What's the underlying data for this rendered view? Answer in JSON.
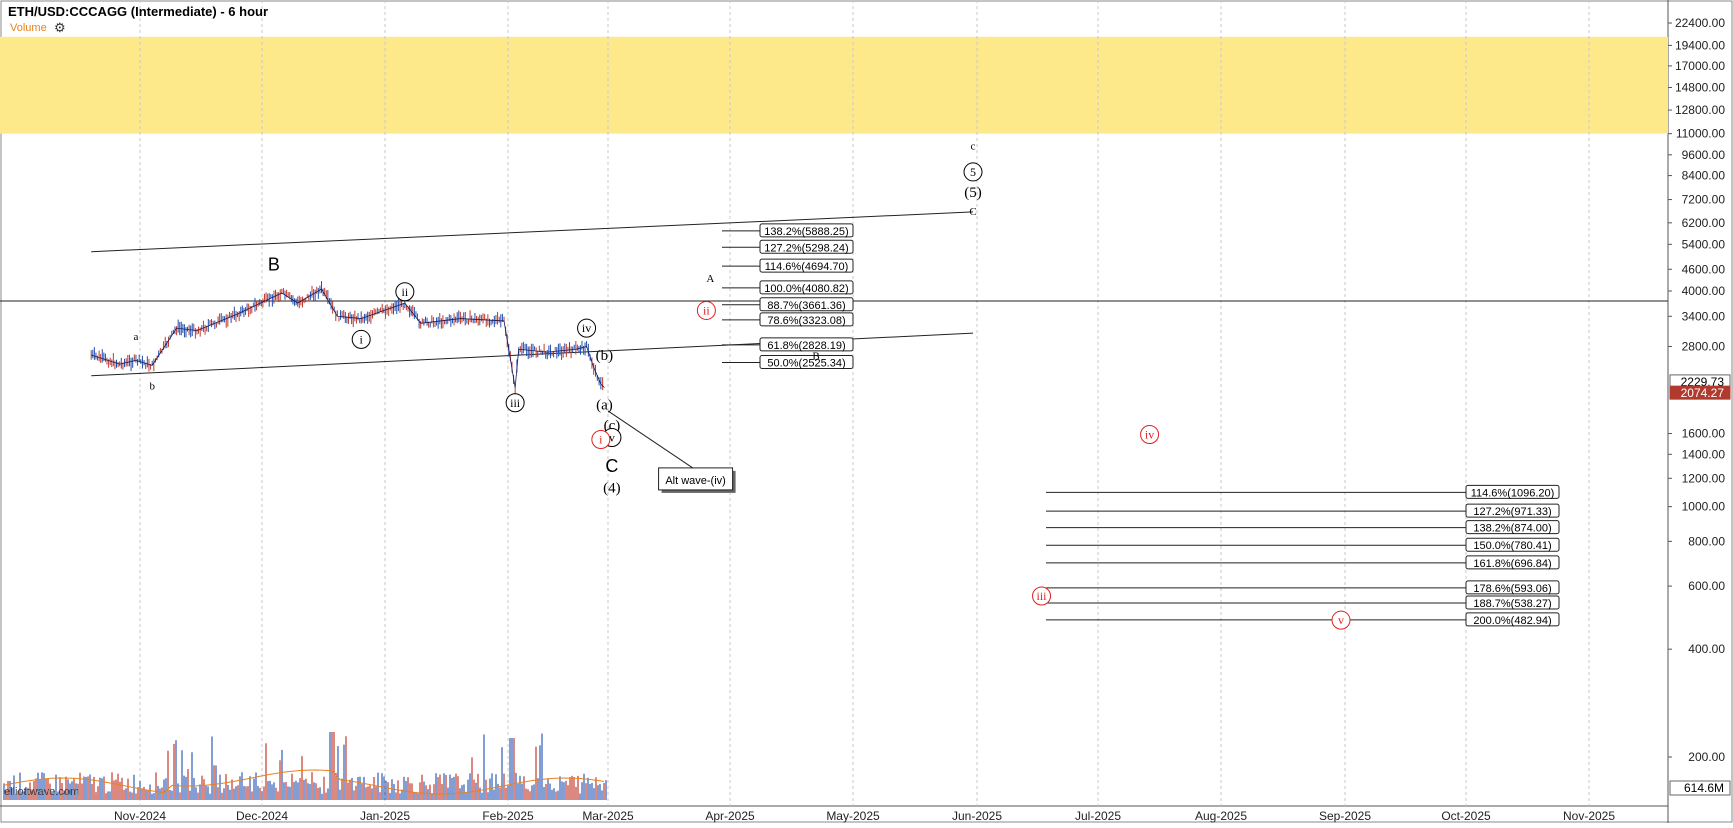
{
  "header": {
    "title": "ETH/USD:CCCAGG (Intermediate) - 6 hour",
    "volume_label": "Volume",
    "settings_icon": "gear-icon",
    "watermark": "elliottwave.com"
  },
  "chart_data": {
    "type": "line",
    "scale": "log",
    "grid": "vertical dashed",
    "colors": {
      "highlight_band": "#fde98a",
      "price_up": "#1f4fb0",
      "price_down": "#c0392b",
      "red_label": "#e02020",
      "current_price_tag": "#b03a2e"
    },
    "x_ticks": [
      "Nov-2024",
      "Dec-2024",
      "Jan-2025",
      "Feb-2025",
      "Mar-2025",
      "Apr-2025",
      "May-2025",
      "Jun-2025",
      "Jul-2025",
      "Aug-2025",
      "Sep-2025",
      "Oct-2025",
      "Nov-2025"
    ],
    "y_ticks": [
      "22400.00",
      "19400.00",
      "17000.00",
      "14800.00",
      "12800.00",
      "11000.00",
      "9600.00",
      "8400.00",
      "7200.00",
      "6200.00",
      "5400.00",
      "4600.00",
      "4000.00",
      "3400.00",
      "2800.00",
      "1600.00",
      "1400.00",
      "1200.00",
      "1000.00",
      "800.00",
      "600.00",
      "400.00",
      "200.00"
    ],
    "ylim": [
      150,
      26000
    ],
    "price_tags": [
      "2229.73",
      "2074.27"
    ],
    "volume_tag": "614.6M",
    "highlight_band": [
      11000,
      20500
    ],
    "price_series": [
      {
        "date": "2024-10-20",
        "close": 2650
      },
      {
        "date": "2024-10-27",
        "close": 2500
      },
      {
        "date": "2024-10-31",
        "close": 2560
      },
      {
        "date": "2024-11-04",
        "close": 2480
      },
      {
        "date": "2024-11-10",
        "close": 3150
      },
      {
        "date": "2024-11-15",
        "close": 3100
      },
      {
        "date": "2024-11-25",
        "close": 3450
      },
      {
        "date": "2024-12-06",
        "close": 3950
      },
      {
        "date": "2024-12-10",
        "close": 3700
      },
      {
        "date": "2024-12-16",
        "close": 4050
      },
      {
        "date": "2024-12-20",
        "close": 3400
      },
      {
        "date": "2024-12-26",
        "close": 3350
      },
      {
        "date": "2025-01-06",
        "close": 3700
      },
      {
        "date": "2025-01-10",
        "close": 3250
      },
      {
        "date": "2025-01-20",
        "close": 3350
      },
      {
        "date": "2025-01-31",
        "close": 3300
      },
      {
        "date": "2025-02-03",
        "close": 2150
      },
      {
        "date": "2025-02-04",
        "close": 2750
      },
      {
        "date": "2025-02-12",
        "close": 2700
      },
      {
        "date": "2025-02-20",
        "close": 2750
      },
      {
        "date": "2025-02-23",
        "close": 2800
      },
      {
        "date": "2025-02-25",
        "close": 2450
      },
      {
        "date": "2025-02-27",
        "close": 2200
      },
      {
        "date": "2025-02-28",
        "close": 2150
      }
    ],
    "horizontal_line": 3750,
    "trend_lines": [
      {
        "from": [
          "2024-10-20",
          5150
        ],
        "to": [
          "2025-05-31",
          6650
        ]
      },
      {
        "from": [
          "2024-10-20",
          2320
        ],
        "to": [
          "2025-05-31",
          3050
        ]
      },
      {
        "from": [
          "2025-03-01",
          1850
        ],
        "to": [
          "2025-03-25",
          1230
        ]
      }
    ],
    "fib_upper": [
      {
        "label": "138.2%(5888.25)",
        "value": 5888.25
      },
      {
        "label": "127.2%(5298.24)",
        "value": 5298.24
      },
      {
        "label": "114.6%(4694.70)",
        "value": 4694.7
      },
      {
        "label": "100.0%(4080.82)",
        "value": 4080.82
      },
      {
        "label": "88.7%(3661.36)",
        "value": 3661.36
      },
      {
        "label": "78.6%(3323.08)",
        "value": 3323.08
      },
      {
        "label": "61.8%(2828.19)",
        "value": 2828.19
      },
      {
        "label": "50.0%(2525.34)",
        "value": 2525.34
      }
    ],
    "fib_lower": [
      {
        "label": "114.6%(1096.20)",
        "value": 1096.2
      },
      {
        "label": "127.2%(971.33)",
        "value": 971.33
      },
      {
        "label": "138.2%(874.00)",
        "value": 874.0
      },
      {
        "label": "150.0%(780.41)",
        "value": 780.41
      },
      {
        "label": "161.8%(696.84)",
        "value": 696.84
      },
      {
        "label": "178.6%(593.06)",
        "value": 593.06
      },
      {
        "label": "188.7%(538.27)",
        "value": 538.27
      },
      {
        "label": "200.0%(482.94)",
        "value": 482.94
      }
    ],
    "annotations": [
      {
        "text": "a",
        "date": "2024-10-31",
        "price": 3000,
        "style": "small"
      },
      {
        "text": "b",
        "date": "2024-11-04",
        "price": 2180,
        "style": "small"
      },
      {
        "text": "B",
        "date": "2024-12-04",
        "price": 4750,
        "style": "large"
      },
      {
        "text": "i",
        "date": "2024-12-26",
        "price": 2930,
        "style": "circled"
      },
      {
        "text": "ii",
        "date": "2025-01-06",
        "price": 3980,
        "style": "circled"
      },
      {
        "text": "iii",
        "date": "2025-02-03",
        "price": 1950,
        "style": "circled"
      },
      {
        "text": "iv",
        "date": "2025-02-23",
        "price": 3150,
        "style": "circled"
      },
      {
        "text": "(b)",
        "date": "2025-02-28",
        "price": 2650,
        "style": "paren"
      },
      {
        "text": "(a)",
        "date": "2025-02-28",
        "price": 1930,
        "style": "paren"
      },
      {
        "text": "(c)",
        "date": "2025-03-02",
        "price": 1690,
        "style": "paren"
      },
      {
        "text": "v",
        "date": "2025-03-02",
        "price": 1560,
        "style": "circled"
      },
      {
        "text": "C",
        "date": "2025-03-02",
        "price": 1300,
        "style": "large"
      },
      {
        "text": "(4)",
        "date": "2025-03-02",
        "price": 1130,
        "style": "paren"
      },
      {
        "text": "i",
        "date": "2025-02-27",
        "price": 1540,
        "style": "circled-red"
      },
      {
        "text": "ii",
        "date": "2025-03-26",
        "price": 3530,
        "style": "circled-red"
      },
      {
        "text": "A",
        "date": "2025-03-27",
        "price": 4350,
        "style": "small"
      },
      {
        "text": "B",
        "date": "2025-04-22",
        "price": 2640,
        "style": "small"
      },
      {
        "text": "c",
        "date": "2025-05-31",
        "price": 10200,
        "style": "small"
      },
      {
        "text": "5",
        "date": "2025-05-31",
        "price": 8600,
        "style": "circled"
      },
      {
        "text": "(5)",
        "date": "2025-05-31",
        "price": 7550,
        "style": "paren"
      },
      {
        "text": "C",
        "date": "2025-05-31",
        "price": 6700,
        "style": "small"
      },
      {
        "text": "iv",
        "date": "2025-07-14",
        "price": 1590,
        "style": "circled-red"
      },
      {
        "text": "iii",
        "date": "2025-06-17",
        "price": 563,
        "style": "circled-red"
      },
      {
        "text": "v",
        "date": "2025-08-31",
        "price": 482,
        "style": "circled-red"
      }
    ],
    "callout": {
      "text": "Alt wave-(iv)",
      "date": "2025-03-23",
      "price": 1180
    }
  }
}
